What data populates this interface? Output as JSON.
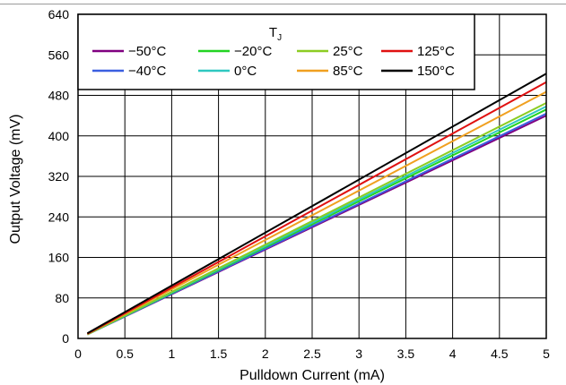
{
  "chart_data": {
    "type": "line",
    "xlabel": "Pulldown Current (mA)",
    "ylabel": "Output Voltage (mV)",
    "xlim": [
      0,
      5
    ],
    "ylim": [
      0,
      640
    ],
    "x_ticks": [
      "0",
      "0.5",
      "1",
      "1.5",
      "2",
      "2.5",
      "3",
      "3.5",
      "4",
      "4.5",
      "5"
    ],
    "y_ticks": [
      "0",
      "80",
      "160",
      "240",
      "320",
      "400",
      "480",
      "560",
      "640"
    ],
    "grid": true,
    "legend": {
      "title_main": "T",
      "title_sub": "J",
      "placement": "top-left"
    },
    "series": [
      {
        "name": "−50°C",
        "color": "#800080",
        "x": [
          0.1,
          5
        ],
        "y": [
          8,
          440
        ]
      },
      {
        "name": "−40°C",
        "color": "#3b5fe0",
        "x": [
          0.1,
          5
        ],
        "y": [
          8,
          444
        ]
      },
      {
        "name": "−20°C",
        "color": "#22d422",
        "x": [
          0.1,
          5
        ],
        "y": [
          8,
          452
        ]
      },
      {
        "name": "0°C",
        "color": "#2ec8c0",
        "x": [
          0.1,
          5
        ],
        "y": [
          8,
          458
        ]
      },
      {
        "name": "25°C",
        "color": "#8ccc22",
        "x": [
          0.1,
          5
        ],
        "y": [
          8,
          465
        ]
      },
      {
        "name": "85°C",
        "color": "#f0a020",
        "x": [
          0.1,
          5
        ],
        "y": [
          9,
          487
        ]
      },
      {
        "name": "125°C",
        "color": "#e01010",
        "x": [
          0.1,
          5
        ],
        "y": [
          9,
          506
        ]
      },
      {
        "name": "150°C",
        "color": "#000000",
        "x": [
          0.1,
          5
        ],
        "y": [
          10,
          523
        ]
      }
    ]
  }
}
